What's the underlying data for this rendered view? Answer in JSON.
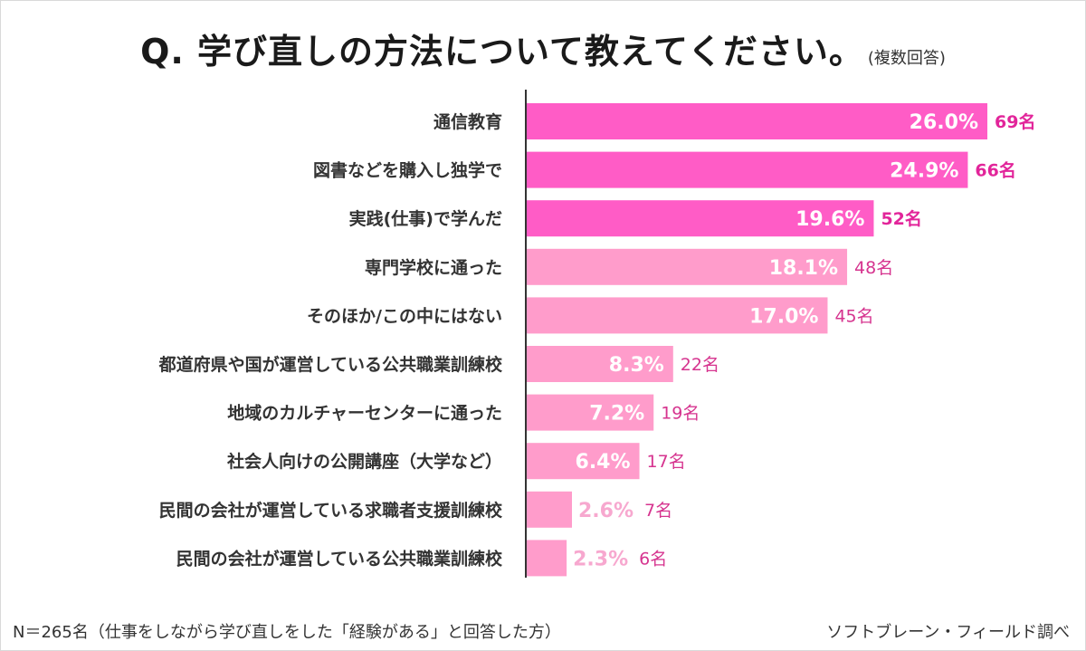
{
  "title": {
    "question": "Q.  学び直しの方法について教えてください。",
    "note": "(複数回答)"
  },
  "chart_data": {
    "type": "bar",
    "orientation": "horizontal",
    "title": "Q. 学び直しの方法について教えてください。(複数回答)",
    "xlim": [
      0,
      30
    ],
    "categories": [
      "通信教育",
      "図書などを購入し独学で",
      "実践(仕事)で学んだ",
      "専門学校に通った",
      "そのほか/この中にはない",
      "都道府県や国が運営している公共職業訓練校",
      "地域のカルチャーセンターに通った",
      "社会人向けの公開講座（大学など）",
      "民間の会社が運営している求職者支援訓練校",
      "民間の会社が運営している公共職業訓練校"
    ],
    "values": [
      26.0,
      24.9,
      19.6,
      18.1,
      17.0,
      8.3,
      7.2,
      6.4,
      2.6,
      2.3
    ],
    "value_labels": [
      "26.0%",
      "24.9%",
      "19.6%",
      "18.1%",
      "17.0%",
      "8.3%",
      "7.2%",
      "6.4%",
      "2.6%",
      "2.3%"
    ],
    "counts": [
      "69名",
      "66名",
      "52名",
      "48名",
      "45名",
      "22名",
      "19名",
      "17名",
      "7名",
      "6名"
    ],
    "highlight_top": 3,
    "colors": {
      "top": "#ff5cc6",
      "rest": "#ff9ccb",
      "axis": "#333333"
    }
  },
  "footer": {
    "sample": "N＝265名（仕事をしながら学び直しをした「経験がある」と回答した方）",
    "source": "ソフトブレーン・フィールド調べ"
  }
}
